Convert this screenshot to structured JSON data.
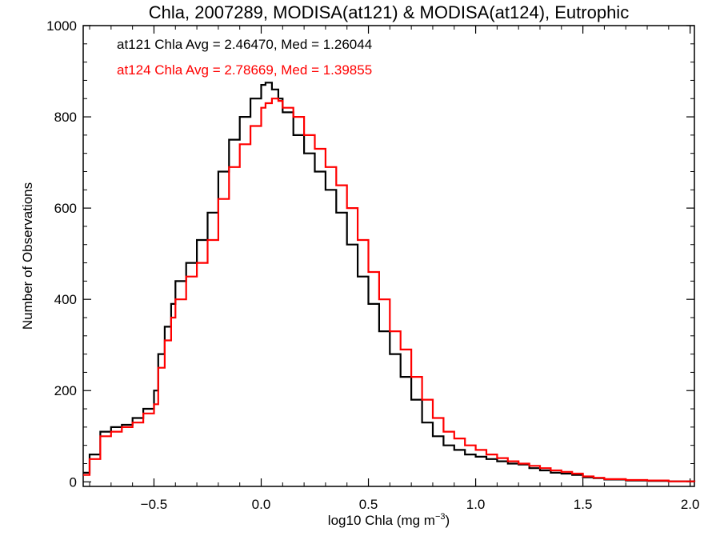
{
  "chart_data": {
    "type": "line",
    "title": "Chla, 2007289, MODISA(at121) & MODISA(at124), Eutrophic",
    "xlabel": "log10 Chla (mg m",
    "xlabel_sup": "−3",
    "xlabel_close": ")",
    "ylabel": "Number of Observations",
    "xlim": [
      -0.83,
      2.02
    ],
    "ylim": [
      -10,
      1000
    ],
    "xticks": [
      -0.5,
      0.0,
      0.5,
      1.0,
      1.5,
      2.0
    ],
    "xtick_labels": [
      "−0.5",
      "0.0",
      "0.5",
      "1.0",
      "1.5",
      "2.0"
    ],
    "yticks": [
      0,
      200,
      400,
      600,
      800,
      1000
    ],
    "ytick_labels": [
      "0",
      "200",
      "400",
      "600",
      "800",
      "1000"
    ],
    "style": "step",
    "legend": "top-left",
    "grid": false,
    "series": [
      {
        "label": "at121 Chla Avg = 2.46470, Med = 1.26044",
        "color": "#000000",
        "x": [
          -0.83,
          -0.8,
          -0.75,
          -0.7,
          -0.65,
          -0.6,
          -0.55,
          -0.5,
          -0.48,
          -0.45,
          -0.42,
          -0.4,
          -0.35,
          -0.3,
          -0.25,
          -0.2,
          -0.15,
          -0.1,
          -0.05,
          0.0,
          0.02,
          0.05,
          0.08,
          0.1,
          0.15,
          0.2,
          0.25,
          0.3,
          0.35,
          0.4,
          0.45,
          0.5,
          0.55,
          0.6,
          0.65,
          0.7,
          0.75,
          0.8,
          0.85,
          0.9,
          0.95,
          1.0,
          1.05,
          1.1,
          1.15,
          1.2,
          1.25,
          1.3,
          1.35,
          1.4,
          1.45,
          1.5,
          1.55,
          1.6,
          1.7,
          1.8,
          1.9,
          2.02
        ],
        "y": [
          20,
          60,
          110,
          120,
          125,
          140,
          160,
          200,
          280,
          340,
          390,
          440,
          480,
          530,
          590,
          680,
          750,
          800,
          840,
          870,
          875,
          860,
          840,
          810,
          760,
          720,
          680,
          640,
          590,
          520,
          450,
          390,
          330,
          280,
          230,
          180,
          130,
          100,
          80,
          70,
          60,
          55,
          50,
          45,
          40,
          38,
          30,
          25,
          20,
          18,
          15,
          10,
          8,
          5,
          3,
          2,
          1,
          0
        ]
      },
      {
        "label": "at124 Chla Avg = 2.78669, Med = 1.39855",
        "color": "#ff0000",
        "x": [
          -0.83,
          -0.8,
          -0.75,
          -0.7,
          -0.65,
          -0.6,
          -0.55,
          -0.5,
          -0.48,
          -0.45,
          -0.42,
          -0.4,
          -0.35,
          -0.3,
          -0.25,
          -0.2,
          -0.15,
          -0.1,
          -0.05,
          0.0,
          0.02,
          0.05,
          0.08,
          0.1,
          0.15,
          0.2,
          0.25,
          0.3,
          0.35,
          0.4,
          0.45,
          0.5,
          0.55,
          0.6,
          0.65,
          0.7,
          0.75,
          0.8,
          0.85,
          0.9,
          0.95,
          1.0,
          1.05,
          1.1,
          1.15,
          1.2,
          1.25,
          1.3,
          1.35,
          1.4,
          1.45,
          1.5,
          1.55,
          1.6,
          1.7,
          1.8,
          1.9,
          2.02
        ],
        "y": [
          15,
          50,
          100,
          110,
          120,
          130,
          150,
          170,
          250,
          310,
          360,
          400,
          450,
          480,
          530,
          620,
          690,
          740,
          780,
          820,
          830,
          840,
          835,
          820,
          800,
          760,
          730,
          690,
          650,
          600,
          530,
          460,
          400,
          330,
          290,
          230,
          180,
          140,
          110,
          95,
          80,
          70,
          60,
          52,
          45,
          40,
          35,
          30,
          25,
          22,
          18,
          12,
          9,
          6,
          4,
          3,
          1,
          0
        ]
      }
    ]
  }
}
